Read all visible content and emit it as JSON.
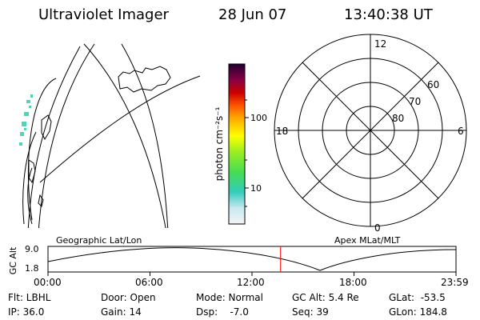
{
  "header": {
    "title": "Ultraviolet Imager",
    "date": "28 Jun 07",
    "time": "13:40:38 UT"
  },
  "colorbar": {
    "unit_label": "photon cm⁻²s⁻¹",
    "tick_100": "100",
    "tick_10": "10"
  },
  "polar_plot": {
    "mlt_top": "12",
    "mlt_bottom": "0",
    "mlt_left": "18",
    "mlt_right": "6",
    "lat_60": "60",
    "lat_70": "70",
    "lat_80": "80"
  },
  "timeline": {
    "left_title": "Geographic Lat/Lon",
    "right_title": "Apex MLat/MLT",
    "y_label": "GC Alt",
    "y_max": "9.0",
    "y_min": "1.8",
    "ticks": [
      "00:00",
      "06:00",
      "12:00",
      "18:00",
      "23:59"
    ],
    "current_marker_hour": 13.68
  },
  "info": {
    "flt": "Flt: LBHL",
    "ip": "IP: 36.0",
    "door": "Door: Open",
    "gain": "Gain: 14",
    "mode": "Mode: Normal",
    "dsp": "Dsp:    -7.0",
    "gcalt": "GC Alt: 5.4 Re",
    "seq": "Seq: 39",
    "glat": "GLat:  -53.5",
    "glon": "GLon: 184.8"
  },
  "colors": {
    "marker": "#ff0000",
    "aurora": "#33ccaa"
  }
}
